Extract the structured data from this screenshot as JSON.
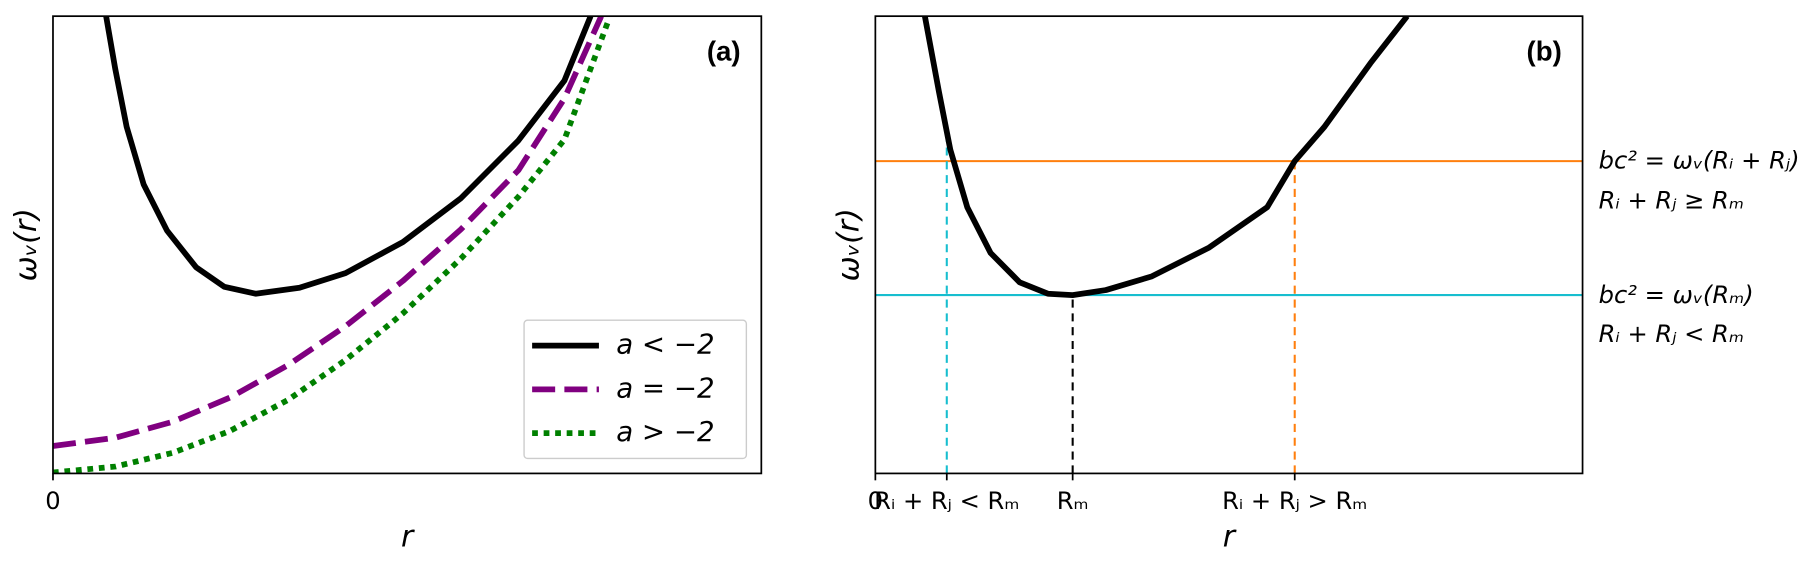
{
  "chart_data": [
    {
      "type": "line",
      "panel_label": "(a)",
      "xlabel": "r",
      "ylabel": "ωᵥ(r)",
      "xlim": [
        0,
        10
      ],
      "ylim": [
        0,
        10
      ],
      "xticks": [
        0
      ],
      "legend": "lower right",
      "series": [
        {
          "name": "a < −2",
          "color": "#000000",
          "style": "solid",
          "x": [
            0.75,
            0.88,
            1.04,
            1.28,
            1.61,
            2.02,
            2.42,
            2.86,
            3.48,
            4.13,
            4.94,
            5.76,
            6.57,
            7.22,
            7.59
          ],
          "values": [
            10.0,
            8.84,
            7.58,
            6.32,
            5.31,
            4.51,
            4.08,
            3.93,
            4.06,
            4.38,
            5.06,
            6.02,
            7.28,
            8.59,
            10.0
          ]
        },
        {
          "name": "a = −2",
          "color": "#800080",
          "style": "dashed",
          "x": [
            0,
            0.88,
            1.69,
            2.5,
            3.32,
            4.13,
            4.94,
            5.76,
            6.57,
            7.22,
            7.74
          ],
          "values": [
            0.6,
            0.78,
            1.13,
            1.66,
            2.37,
            3.22,
            4.21,
            5.34,
            6.63,
            8.2,
            10.0
          ]
        },
        {
          "name": "a > −2",
          "color": "#008000",
          "style": "dotted",
          "x": [
            0,
            0.88,
            1.69,
            2.5,
            3.32,
            4.13,
            4.94,
            5.76,
            6.57,
            7.22,
            7.84
          ],
          "values": [
            0.02,
            0.15,
            0.45,
            0.93,
            1.61,
            2.48,
            3.5,
            4.7,
            6.05,
            7.3,
            9.9
          ]
        }
      ]
    },
    {
      "type": "line",
      "panel_label": "(b)",
      "xlabel": "r",
      "ylabel": "ωᵥ(r)",
      "xlim": [
        0,
        10
      ],
      "ylim": [
        0,
        10
      ],
      "xticks": [
        0,
        {
          "value": 1.01,
          "label": "Rᵢ + Rⱼ < Rₘ"
        },
        {
          "value": 2.79,
          "label": "Rₘ"
        },
        {
          "value": 5.93,
          "label": "Rᵢ + Rⱼ > Rₘ"
        }
      ],
      "series": [
        {
          "color": "#000000",
          "style": "solid",
          "x": [
            0.7,
            0.9,
            1.06,
            1.3,
            1.63,
            2.04,
            2.44,
            2.79,
            3.26,
            3.91,
            4.72,
            5.54,
            5.93,
            6.35,
            7.0,
            7.52
          ],
          "values": [
            10.0,
            8.34,
            7.08,
            5.82,
            4.82,
            4.18,
            3.93,
            3.9,
            4.01,
            4.31,
            4.94,
            5.82,
            6.83,
            7.58,
            8.97,
            10.0
          ]
        }
      ],
      "hlines": [
        {
          "value": 6.83,
          "color": "#ff7f0e"
        },
        {
          "value": 3.9,
          "color": "#17becf"
        }
      ],
      "vlines": [
        {
          "x": 1.01,
          "top": 7.3,
          "color": "#17becf"
        },
        {
          "x": 2.79,
          "top": 3.9,
          "color": "#000000"
        },
        {
          "x": 5.93,
          "top": 6.83,
          "color": "#ff7f0e"
        }
      ],
      "annotations": [
        "bc² = ωᵥ(Rᵢ + Rⱼ)",
        "Rᵢ + Rⱼ ≥ Rₘ",
        "bc² = ωᵥ(Rₘ)",
        "Rᵢ + Rⱼ < Rₘ"
      ]
    }
  ]
}
